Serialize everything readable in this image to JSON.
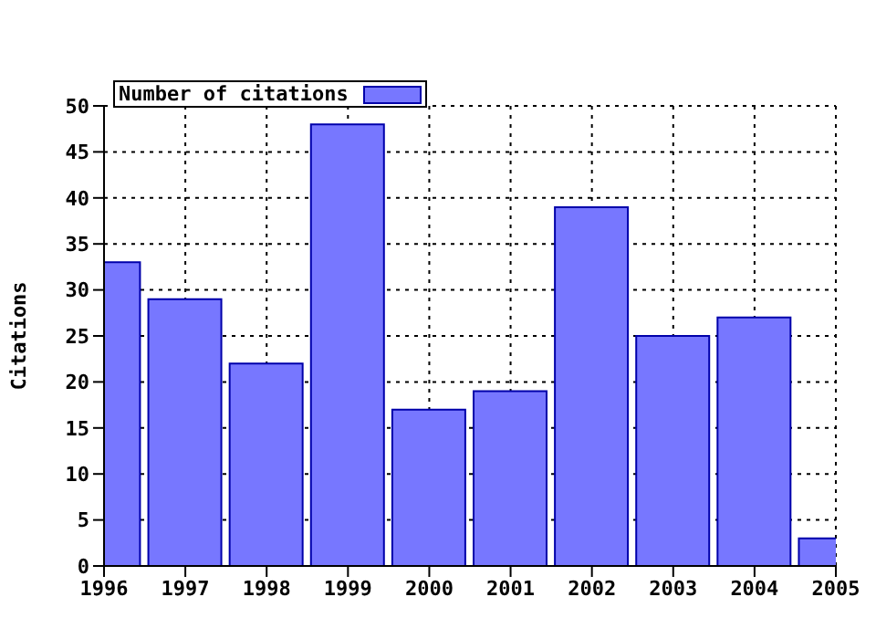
{
  "chart_data": {
    "type": "bar",
    "ylabel": "Citations",
    "x": [
      1996,
      1997,
      1998,
      1999,
      2000,
      2001,
      2002,
      2003,
      2004,
      2005
    ],
    "series": [
      {
        "name": "Number of citations",
        "color": "#7777ff",
        "values": [
          33,
          29,
          22,
          48,
          17,
          19,
          39,
          25,
          27,
          3
        ]
      }
    ],
    "xlim": [
      1996,
      2005
    ],
    "xticks": [
      1996,
      1997,
      1998,
      1999,
      2000,
      2001,
      2002,
      2003,
      2004,
      2005
    ],
    "ylim": [
      0,
      50
    ],
    "yticks": [
      0,
      5,
      10,
      15,
      20,
      25,
      30,
      35,
      40,
      45,
      50
    ],
    "grid": true,
    "legend": "top left"
  }
}
